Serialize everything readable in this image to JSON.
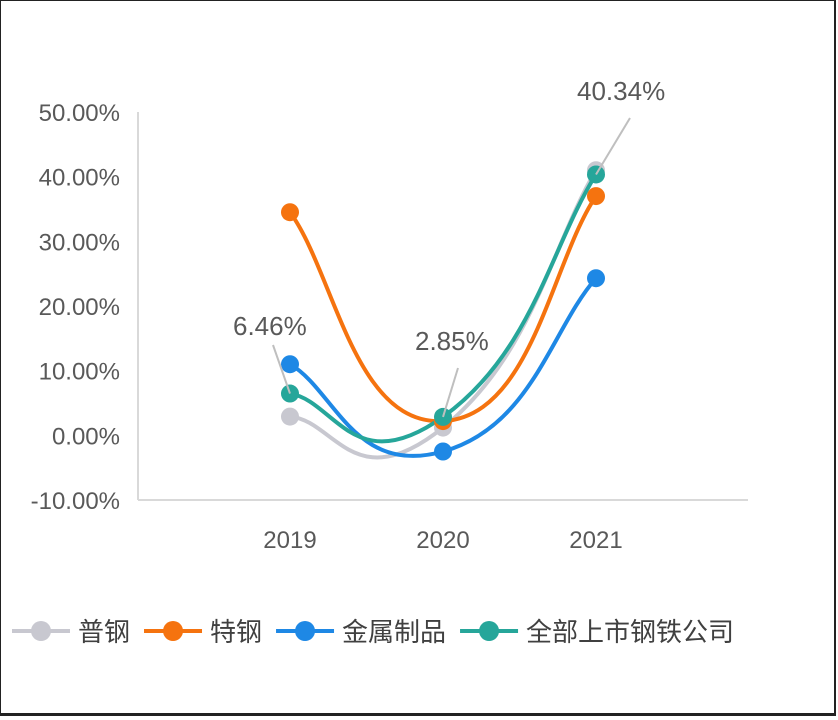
{
  "chart_data": {
    "type": "line",
    "title": "",
    "xlabel": "",
    "ylabel": "",
    "categories": [
      "2019",
      "2020",
      "2021"
    ],
    "ylim": [
      -10,
      50
    ],
    "yticks": [
      -10,
      0,
      10,
      20,
      30,
      40,
      50
    ],
    "ytick_labels": [
      "-10.00%",
      "0.00%",
      "10.00%",
      "20.00%",
      "30.00%",
      "40.00%",
      "50.00%"
    ],
    "series": [
      {
        "name": "普钢",
        "values": [
          2.9,
          1.2,
          41.0
        ],
        "color": "#C8C8D0"
      },
      {
        "name": "特钢",
        "values": [
          34.5,
          2.2,
          37.0
        ],
        "color": "#F5730F"
      },
      {
        "name": "金属制品",
        "values": [
          11.0,
          -2.5,
          24.3
        ],
        "color": "#1E88E5"
      },
      {
        "name": "全部上市钢铁公司",
        "values": [
          6.46,
          2.85,
          40.34
        ],
        "color": "#26A69A"
      }
    ],
    "data_labels": [
      {
        "text": "6.46%",
        "series": "全部上市钢铁公司",
        "category": "2019"
      },
      {
        "text": "2.85%",
        "series": "全部上市钢铁公司",
        "category": "2020"
      },
      {
        "text": "40.34%",
        "series": "全部上市钢铁公司",
        "category": "2021"
      }
    ],
    "grid": false,
    "legend_position": "bottom"
  }
}
